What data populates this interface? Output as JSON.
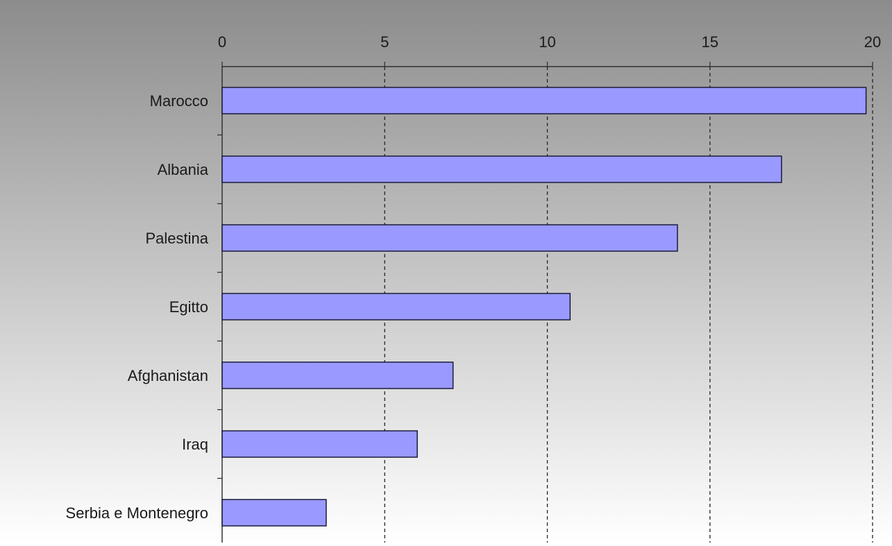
{
  "chart_data": {
    "type": "bar",
    "orientation": "horizontal",
    "categories": [
      "Marocco",
      "Albania",
      "Palestina",
      "Egitto",
      "Afghanistan",
      "Iraq",
      "Serbia e Montenegro"
    ],
    "values": [
      19.8,
      17.2,
      14.0,
      10.7,
      7.1,
      6.0,
      3.2
    ],
    "title": "",
    "xlabel": "",
    "ylabel": "",
    "xlim": [
      0,
      20
    ],
    "x_ticks": [
      0,
      5,
      10,
      15,
      20
    ],
    "x_axis_position": "top",
    "grid": "vertical dashed",
    "legend": "none",
    "colors": {
      "bar_fill": "#9999ff",
      "bar_stroke": "#1a1a3a",
      "background_top": "#8c8c8c",
      "background_bottom": "#ffffff",
      "grid": "#222222",
      "axis": "#333333"
    }
  }
}
